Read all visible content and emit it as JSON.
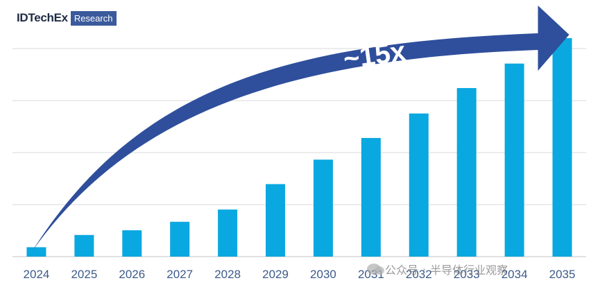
{
  "logo": {
    "brand": "IDTechEx",
    "badge": "Research"
  },
  "chart_data": {
    "type": "bar",
    "categories": [
      "2024",
      "2025",
      "2026",
      "2027",
      "2028",
      "2029",
      "2030",
      "2031",
      "2032",
      "2033",
      "2034",
      "2035"
    ],
    "values": [
      1,
      2.3,
      2.8,
      3.7,
      5,
      7.7,
      10.3,
      12.6,
      15.2,
      17.9,
      20.5,
      23.2
    ],
    "ylim": [
      0,
      23.2
    ],
    "grid": true,
    "bar_color": "#0aa8e0",
    "arrow_color": "#2f4f9c",
    "annotation": "~15x"
  },
  "watermark": {
    "left": "公众号",
    "sep": "·",
    "right": "半导体行业观察"
  }
}
